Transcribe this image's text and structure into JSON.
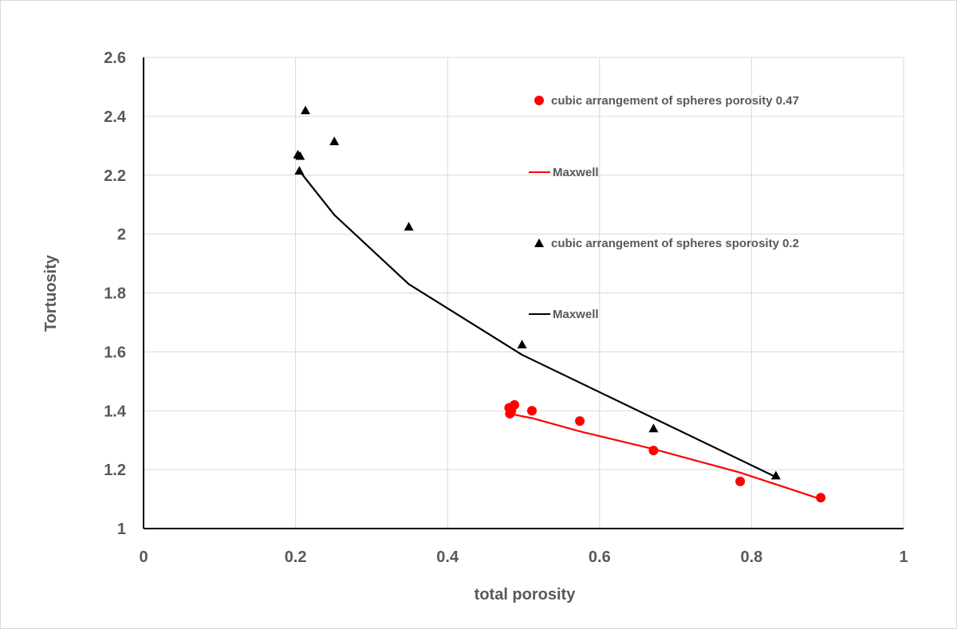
{
  "chart_data": {
    "type": "scatter",
    "title": "",
    "xlabel": "total porosity",
    "ylabel": "Tortuosity",
    "xlim": [
      0,
      1
    ],
    "ylim": [
      1,
      2.6
    ],
    "xticks": [
      "0",
      "0.2",
      "0.4",
      "0.6",
      "0.8",
      "1"
    ],
    "yticks": [
      "1",
      "1.2",
      "1.4",
      "1.6",
      "1.8",
      "2",
      "2.2",
      "2.4",
      "2.6"
    ],
    "grid": true,
    "legend_position": "right",
    "series": [
      {
        "name": "cubic arrangement of spheres porosity 0.47",
        "kind": "scatter",
        "marker": "circle",
        "color": "#ff0000",
        "x": [
          0.481,
          0.484,
          0.488,
          0.482,
          0.511,
          0.574,
          0.671,
          0.785,
          0.891
        ],
        "y": [
          1.41,
          1.4,
          1.42,
          1.39,
          1.4,
          1.365,
          1.265,
          1.16,
          1.105
        ]
      },
      {
        "name": "Maxwell",
        "kind": "line",
        "color": "#ff0000",
        "x": [
          0.481,
          0.511,
          0.574,
          0.671,
          0.785,
          0.891
        ],
        "y": [
          1.39,
          1.375,
          1.33,
          1.27,
          1.19,
          1.1
        ]
      },
      {
        "name": "cubic arrangement of spheres sporosity 0.2",
        "kind": "scatter",
        "marker": "triangle",
        "color": "#000000",
        "x": [
          0.203,
          0.206,
          0.205,
          0.213,
          0.251,
          0.349,
          0.498,
          0.671,
          0.832
        ],
        "y": [
          2.27,
          2.265,
          2.215,
          2.42,
          2.315,
          2.025,
          1.625,
          1.34,
          1.18
        ]
      },
      {
        "name": "Maxwell",
        "kind": "line",
        "color": "#000000",
        "x": [
          0.205,
          0.251,
          0.349,
          0.498,
          0.671,
          0.832
        ],
        "y": [
          2.215,
          2.065,
          1.83,
          1.59,
          1.375,
          1.175
        ]
      }
    ]
  }
}
